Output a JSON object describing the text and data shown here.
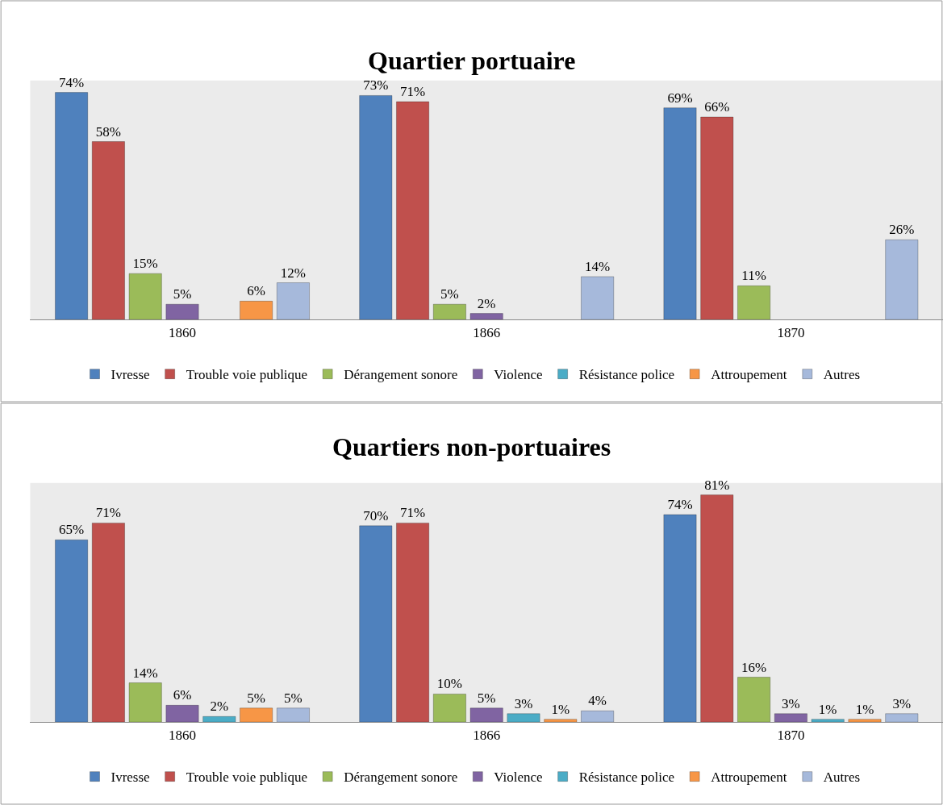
{
  "chart_data": [
    {
      "type": "bar",
      "title": "Quartier portuaire",
      "categories": [
        "1860",
        "1866",
        "1870"
      ],
      "legend": "bottom",
      "grid": false,
      "tick_labels": "x",
      "series": [
        {
          "name": "Ivresse",
          "color": "#4f81bd",
          "values": [
            74,
            73,
            69
          ],
          "value_labels": [
            "74%",
            "73%",
            "69%"
          ]
        },
        {
          "name": "Trouble voie publique",
          "color": "#c0504d",
          "values": [
            58,
            71,
            66
          ],
          "value_labels": [
            "58%",
            "71%",
            "66%"
          ]
        },
        {
          "name": "Dérangement sonore",
          "color": "#9bbb59",
          "values": [
            15,
            5,
            11
          ],
          "value_labels": [
            "15%",
            "5%",
            "11%"
          ]
        },
        {
          "name": "Violence",
          "color": "#8064a2",
          "values": [
            5,
            2,
            null
          ],
          "value_labels": [
            "5%",
            "2%",
            null
          ]
        },
        {
          "name": "Résistance police",
          "color": "#4bacc6",
          "values": [
            null,
            null,
            null
          ],
          "value_labels": [
            null,
            null,
            null
          ]
        },
        {
          "name": "Attroupement",
          "color": "#f79646",
          "values": [
            6,
            null,
            null
          ],
          "value_labels": [
            "6%",
            null,
            null
          ]
        },
        {
          "name": "Autres",
          "color": "#a6b9db",
          "values": [
            12,
            14,
            26
          ],
          "value_labels": [
            "12%",
            "14%",
            "26%"
          ]
        }
      ]
    },
    {
      "type": "bar",
      "title": "Quartiers non-portuaires",
      "categories": [
        "1860",
        "1866",
        "1870"
      ],
      "legend": "bottom",
      "grid": false,
      "tick_labels": "x",
      "series": [
        {
          "name": "Ivresse",
          "color": "#4f81bd",
          "values": [
            65,
            70,
            74
          ],
          "value_labels": [
            "65%",
            "70%",
            "74%"
          ]
        },
        {
          "name": "Trouble voie publique",
          "color": "#c0504d",
          "values": [
            71,
            71,
            81
          ],
          "value_labels": [
            "71%",
            "71%",
            "81%"
          ]
        },
        {
          "name": "Dérangement sonore",
          "color": "#9bbb59",
          "values": [
            14,
            10,
            16
          ],
          "value_labels": [
            "14%",
            "10%",
            "16%"
          ]
        },
        {
          "name": "Violence",
          "color": "#8064a2",
          "values": [
            6,
            5,
            3
          ],
          "value_labels": [
            "6%",
            "5%",
            "3%"
          ]
        },
        {
          "name": "Résistance police",
          "color": "#4bacc6",
          "values": [
            2,
            3,
            1
          ],
          "value_labels": [
            "2%",
            "3%",
            "1%"
          ]
        },
        {
          "name": "Attroupement",
          "color": "#f79646",
          "values": [
            5,
            1,
            1
          ],
          "value_labels": [
            "5%",
            "1%",
            "1%"
          ]
        },
        {
          "name": "Autres",
          "color": "#a6b9db",
          "values": [
            5,
            4,
            3
          ],
          "value_labels": [
            "5%",
            "4%",
            "3%"
          ]
        }
      ]
    }
  ]
}
